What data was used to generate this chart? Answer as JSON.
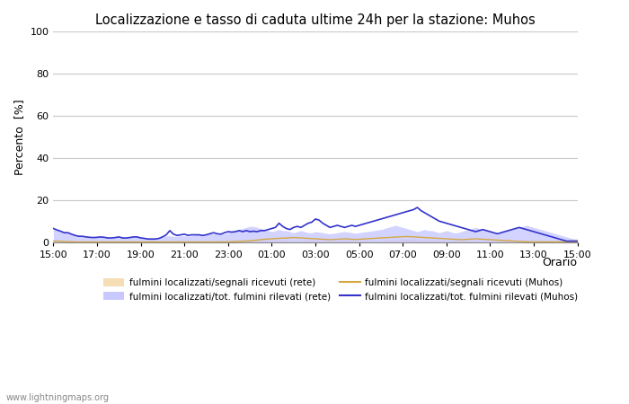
{
  "title": "Localizzazione e tasso di caduta ultime 24h per la stazione: Muhos",
  "xlabel": "Orario",
  "ylabel": "Percento  [%]",
  "ylim": [
    0,
    100
  ],
  "yticks": [
    0,
    20,
    40,
    60,
    80,
    100
  ],
  "xtick_labels": [
    "15:00",
    "17:00",
    "19:00",
    "21:00",
    "23:00",
    "01:00",
    "03:00",
    "05:00",
    "07:00",
    "09:00",
    "11:00",
    "13:00",
    "15:00"
  ],
  "background_color": "#ffffff",
  "plot_bg_color": "#ffffff",
  "grid_color": "#c8c8c8",
  "watermark": "www.lightningmaps.org",
  "legend": [
    {
      "label": "fulmini localizzati/segnali ricevuti (rete)",
      "color": "#f5deb3",
      "type": "fill"
    },
    {
      "label": "fulmini localizzati/segnali ricevuti (Muhos)",
      "color": "#d4a840",
      "type": "line"
    },
    {
      "label": "fulmini localizzati/tot. fulmini rilevati (rete)",
      "color": "#c8c8ff",
      "type": "fill"
    },
    {
      "label": "fulmini localizzati/tot. fulmini rilevati (Muhos)",
      "color": "#3333cc",
      "type": "line"
    }
  ],
  "fill_rete_segnali": [
    1.2,
    1.1,
    1.0,
    0.9,
    0.8,
    0.7,
    0.6,
    0.5,
    0.5,
    0.5,
    0.4,
    0.3,
    0.3,
    0.4,
    0.3,
    0.3,
    0.3,
    0.3,
    0.3,
    0.3,
    0.3,
    0.3,
    0.4,
    0.4,
    0.3,
    0.3,
    0.2,
    0.2,
    0.2,
    0.3,
    0.4,
    0.4,
    0.4,
    0.4,
    0.4,
    0.5,
    0.4,
    0.4,
    0.5,
    0.5,
    0.4,
    0.4,
    0.5,
    0.5,
    0.6,
    0.7,
    0.8,
    0.9,
    1.0,
    1.1,
    1.2,
    1.3,
    1.4,
    1.5,
    1.5,
    1.5,
    1.4,
    1.3,
    1.2,
    1.1,
    1.0,
    1.1,
    1.2,
    1.2,
    1.1,
    1.0,
    0.9,
    0.9,
    1.0,
    1.1,
    1.2,
    1.2,
    1.1,
    1.0,
    0.9,
    0.8,
    0.7,
    0.8,
    0.9,
    1.0,
    1.1,
    1.0,
    0.9,
    0.8,
    0.9,
    1.0,
    1.1,
    1.0,
    0.9,
    0.8,
    0.9,
    1.0,
    1.1,
    1.2,
    1.3,
    1.4,
    1.5,
    1.6,
    1.5,
    1.4,
    1.3,
    1.2,
    1.1,
    1.0,
    1.0,
    1.1,
    1.2,
    1.1,
    1.0,
    0.9,
    0.8,
    0.9,
    1.0,
    1.1,
    1.2,
    1.1,
    1.0,
    0.9,
    0.8,
    0.7,
    0.8,
    0.9,
    1.0,
    1.1,
    1.2,
    1.1,
    1.0,
    0.9,
    0.8,
    0.9,
    1.0,
    1.1,
    1.2,
    1.1,
    1.0,
    0.9,
    0.8,
    0.9,
    1.0,
    1.1,
    1.2,
    1.3,
    1.4,
    1.5,
    1.6,
    1.7
  ],
  "line_muhos_segnali": [
    0.5,
    0.5,
    0.4,
    0.3,
    0.2,
    0.2,
    0.1,
    0.1,
    0.1,
    0.1,
    0.1,
    0.1,
    0.1,
    0.1,
    0.1,
    0.1,
    0.1,
    0.1,
    0.1,
    0.1,
    0.1,
    0.1,
    0.1,
    0.1,
    0.1,
    0.1,
    0.1,
    0.1,
    0.1,
    0.1,
    0.1,
    0.1,
    0.1,
    0.1,
    0.1,
    0.1,
    0.1,
    0.1,
    0.1,
    0.1,
    0.1,
    0.1,
    0.1,
    0.1,
    0.1,
    0.1,
    0.1,
    0.1,
    0.1,
    0.2,
    0.2,
    0.3,
    0.4,
    0.5,
    0.6,
    0.8,
    1.0,
    1.2,
    1.4,
    1.5,
    1.6,
    1.7,
    1.8,
    1.9,
    2.0,
    2.1,
    2.2,
    2.1,
    2.0,
    1.9,
    1.8,
    1.7,
    1.6,
    1.5,
    1.4,
    1.3,
    1.2,
    1.3,
    1.4,
    1.5,
    1.6,
    1.5,
    1.4,
    1.3,
    1.4,
    1.5,
    1.6,
    1.7,
    1.8,
    1.9,
    2.0,
    2.1,
    2.2,
    2.3,
    2.4,
    2.5,
    2.6,
    2.7,
    2.6,
    2.5,
    2.4,
    2.3,
    2.2,
    2.1,
    2.0,
    1.9,
    1.8,
    1.7,
    1.6,
    1.5,
    1.4,
    1.3,
    1.2,
    1.3,
    1.4,
    1.5,
    1.6,
    1.5,
    1.4,
    1.3,
    1.2,
    1.1,
    1.0,
    0.9,
    0.8,
    0.7,
    0.6,
    0.5,
    0.4,
    0.3,
    0.2,
    0.1,
    0.1,
    0.1,
    0.1,
    0.1,
    0.1,
    0.1,
    0.1,
    0.1,
    0.1,
    0.1,
    0.1,
    0.1,
    0.1,
    0.2
  ],
  "fill_rete_fulmini": [
    6.5,
    5.8,
    5.2,
    4.8,
    4.8,
    4.0,
    3.5,
    3.0,
    3.0,
    2.8,
    2.5,
    2.3,
    2.5,
    2.8,
    2.5,
    2.3,
    2.3,
    2.5,
    2.5,
    2.5,
    2.3,
    2.5,
    3.0,
    3.0,
    2.5,
    2.3,
    2.0,
    2.0,
    2.0,
    2.0,
    2.5,
    3.0,
    3.0,
    2.8,
    2.8,
    3.0,
    3.0,
    2.8,
    3.0,
    3.5,
    3.5,
    3.0,
    3.5,
    4.0,
    4.0,
    3.8,
    3.8,
    4.0,
    4.5,
    5.0,
    5.5,
    6.0,
    6.5,
    7.0,
    7.5,
    7.5,
    7.0,
    6.5,
    6.0,
    5.5,
    5.0,
    5.5,
    6.0,
    5.5,
    5.5,
    5.0,
    4.5,
    5.0,
    5.5,
    5.0,
    4.5,
    4.5,
    5.0,
    4.8,
    4.5,
    4.2,
    4.0,
    4.2,
    4.5,
    4.8,
    5.0,
    4.8,
    4.5,
    4.2,
    4.5,
    4.8,
    5.0,
    5.2,
    5.5,
    5.8,
    6.0,
    6.5,
    7.0,
    7.5,
    8.0,
    7.5,
    7.0,
    6.5,
    6.0,
    5.5,
    5.0,
    5.5,
    6.0,
    5.5,
    5.5,
    5.0,
    4.5,
    5.0,
    5.5,
    5.0,
    4.5,
    4.5,
    5.0,
    5.5,
    6.0,
    6.5,
    7.0,
    6.5,
    6.0,
    5.5,
    5.0,
    4.5,
    4.0,
    4.5,
    5.0,
    5.5,
    6.0,
    6.5,
    7.0,
    7.5,
    8.0,
    7.5,
    7.0,
    6.5,
    6.0,
    5.5,
    5.0,
    4.5,
    4.0,
    3.5,
    3.0,
    2.5,
    2.0,
    1.5,
    1.0,
    0.5
  ],
  "line_muhos_fulmini": [
    6.5,
    5.8,
    5.2,
    4.5,
    4.5,
    3.8,
    3.2,
    2.8,
    2.8,
    2.5,
    2.3,
    2.2,
    2.3,
    2.5,
    2.3,
    2.0,
    2.0,
    2.2,
    2.5,
    2.0,
    2.0,
    2.2,
    2.5,
    2.5,
    2.0,
    1.8,
    1.5,
    1.5,
    1.5,
    1.8,
    2.5,
    3.5,
    5.5,
    3.8,
    3.2,
    3.5,
    3.8,
    3.2,
    3.5,
    3.5,
    3.5,
    3.2,
    3.5,
    4.0,
    4.5,
    4.0,
    3.8,
    4.5,
    5.0,
    4.8,
    5.0,
    5.5,
    5.0,
    5.5,
    5.0,
    5.2,
    5.0,
    5.5,
    5.5,
    6.0,
    6.5,
    7.0,
    9.0,
    7.5,
    6.5,
    6.0,
    7.0,
    7.5,
    7.0,
    8.0,
    9.0,
    9.5,
    11.0,
    10.5,
    9.0,
    8.0,
    7.0,
    7.5,
    8.0,
    7.5,
    7.0,
    7.5,
    8.0,
    7.5,
    8.0,
    8.5,
    9.0,
    9.5,
    10.0,
    10.5,
    11.0,
    11.5,
    12.0,
    12.5,
    13.0,
    13.5,
    14.0,
    14.5,
    15.0,
    15.5,
    16.5,
    15.0,
    14.0,
    13.0,
    12.0,
    11.0,
    10.0,
    9.5,
    9.0,
    8.5,
    8.0,
    7.5,
    7.0,
    6.5,
    6.0,
    5.5,
    5.0,
    5.5,
    6.0,
    5.5,
    5.0,
    4.5,
    4.0,
    4.5,
    5.0,
    5.5,
    6.0,
    6.5,
    7.0,
    6.5,
    6.0,
    5.5,
    5.0,
    4.5,
    4.0,
    3.5,
    3.0,
    2.5,
    2.0,
    1.5,
    1.0,
    0.5,
    0.5,
    0.5,
    0.5,
    0.5
  ]
}
